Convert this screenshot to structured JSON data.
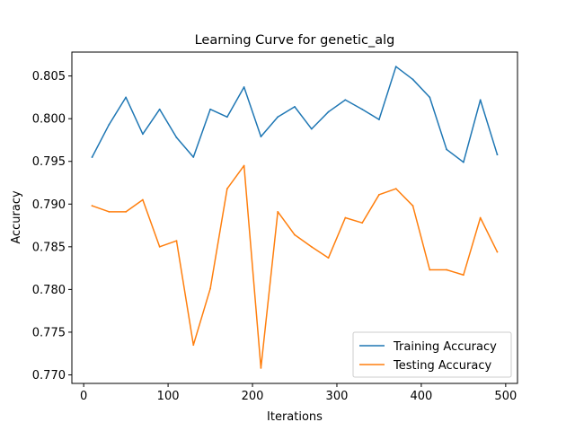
{
  "chart_data": {
    "type": "line",
    "title": "Learning Curve for genetic_alg",
    "xlabel": "Iterations",
    "ylabel": "Accuracy",
    "xlim": [
      -14,
      514
    ],
    "ylim": [
      0.769,
      0.8078
    ],
    "xticks": [
      0,
      100,
      200,
      300,
      400,
      500
    ],
    "yticks": [
      0.77,
      0.775,
      0.78,
      0.785,
      0.79,
      0.795,
      0.8,
      0.805
    ],
    "ytick_labels": [
      "0.770",
      "0.775",
      "0.780",
      "0.785",
      "0.790",
      "0.795",
      "0.800",
      "0.805"
    ],
    "xtick_labels": [
      "0",
      "100",
      "200",
      "300",
      "400",
      "500"
    ],
    "grid": false,
    "legend_position": "lower-right",
    "x": [
      10,
      30,
      50,
      70,
      90,
      110,
      130,
      150,
      170,
      190,
      210,
      230,
      250,
      270,
      290,
      310,
      330,
      350,
      370,
      390,
      410,
      430,
      450,
      470,
      490
    ],
    "series": [
      {
        "name": "Training Accuracy",
        "color": "#1f77b4",
        "values": [
          0.7955,
          0.7993,
          0.8025,
          0.7982,
          0.8011,
          0.7978,
          0.7955,
          0.8011,
          0.8002,
          0.8037,
          0.7979,
          0.8002,
          0.8014,
          0.7988,
          0.8008,
          0.8022,
          0.8011,
          0.7999,
          0.8061,
          0.8046,
          0.8025,
          0.7964,
          0.7949,
          0.8022,
          0.7958
        ]
      },
      {
        "name": "Testing Accuracy",
        "color": "#ff7f0e",
        "values": [
          0.7898,
          0.7891,
          0.7891,
          0.7905,
          0.785,
          0.7857,
          0.7735,
          0.7801,
          0.7918,
          0.7945,
          0.7708,
          0.7891,
          0.7864,
          0.785,
          0.7837,
          0.7884,
          0.7878,
          0.7911,
          0.7918,
          0.7898,
          0.7823,
          0.7823,
          0.7817,
          0.7884,
          0.7844
        ]
      }
    ]
  }
}
